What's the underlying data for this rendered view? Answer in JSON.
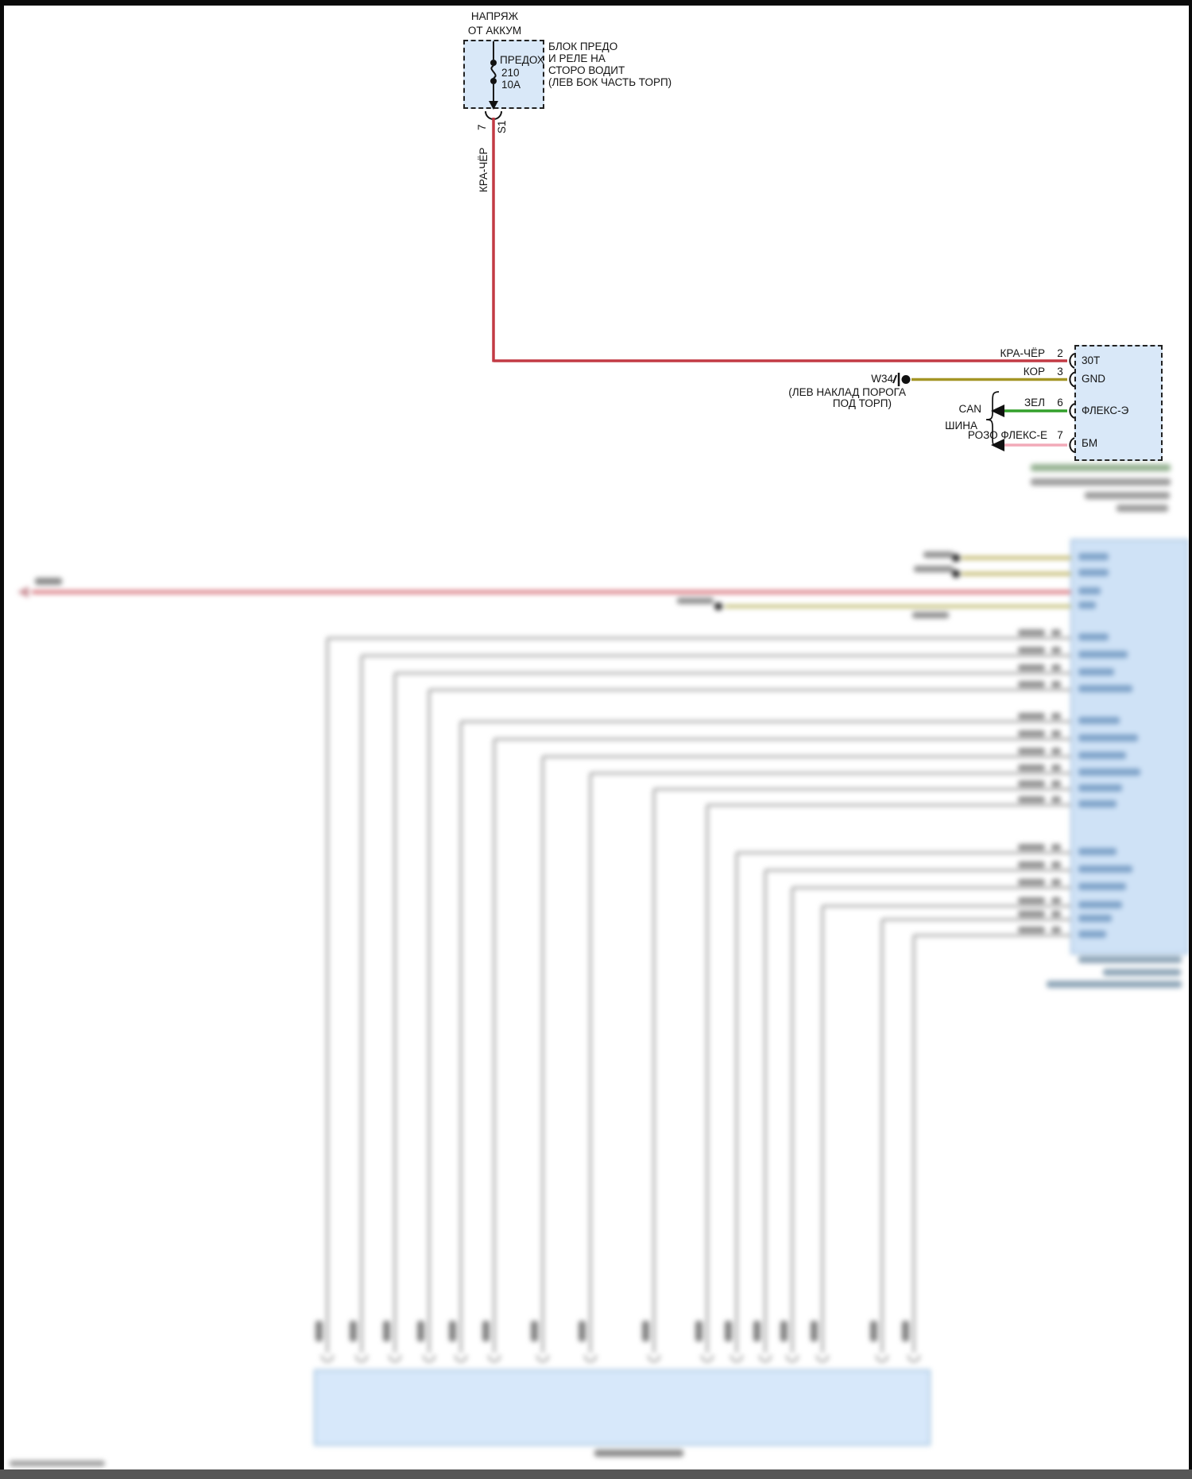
{
  "colors": {
    "wire_red": "#c23a44",
    "wire_brown": "#a39525",
    "wire_green": "#33a02c",
    "wire_pink": "#f2aab8",
    "box_fill": "#d9e8f8"
  },
  "power_source": {
    "line1": "НАПРЯЖ",
    "line2": "ОТ АККУМ"
  },
  "fuse_block": {
    "name_lines": [
      "БЛОК ПРЕДО",
      "И РЕЛЕ НА",
      "СТОРО ВОДИТ",
      "(ЛЕВ БОК ЧАСТЬ ТОРП)"
    ],
    "fuse_label": "ПРЕДОХ",
    "fuse_number": "210",
    "fuse_rating": "10А",
    "output_pin": "7",
    "output_splice": "S1",
    "output_wire_color": "КРА-ЧЁР"
  },
  "module_connector": {
    "pins": [
      {
        "wire_color": "КРА-ЧЁР",
        "pin": "2",
        "terminal": "30T"
      },
      {
        "wire_color": "КОР",
        "pin": "3",
        "terminal": "GND"
      },
      {
        "wire_color": "ЗЕЛ",
        "pin": "6",
        "terminal": "ФЛЕКС-Э"
      },
      {
        "wire_color": "РОЗО ФЛЕКС-Е",
        "pin": "7",
        "terminal": "БМ"
      }
    ],
    "ground": {
      "id": "W34",
      "location_lines": [
        "(ЛЕВ НАКЛАД ПОРОГА",
        "ПОД ТОРП)"
      ]
    },
    "bus_label_lines": [
      "CAN",
      "ШИНА"
    ]
  }
}
